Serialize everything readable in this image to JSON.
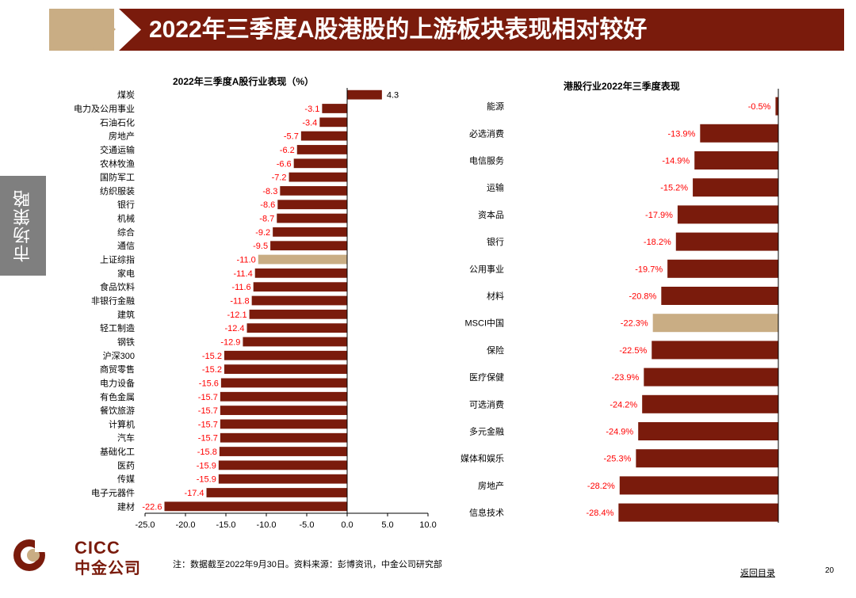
{
  "header": {
    "title": "2022年三季度A股港股的上游板块表现相对较好"
  },
  "side_tab": {
    "label": "市场策略"
  },
  "colors": {
    "brand": "#7a1b0c",
    "bar": "#7a1b0c",
    "highlight": "#c9ad84",
    "label_neg": "#ff0000",
    "tab": "#7f7f7f"
  },
  "chart_data": [
    {
      "type": "bar",
      "orientation": "horizontal",
      "title": "2022年三季度A股行业表现（%）",
      "categories": [
        "煤炭",
        "电力及公用事业",
        "石油石化",
        "房地产",
        "交通运输",
        "农林牧渔",
        "国防军工",
        "纺织服装",
        "银行",
        "机械",
        "综合",
        "通信",
        "上证综指",
        "家电",
        "食品饮料",
        "非银行金融",
        "建筑",
        "轻工制造",
        "钢铁",
        "沪深300",
        "商贸零售",
        "电力设备",
        "有色金属",
        "餐饮旅游",
        "计算机",
        "汽车",
        "基础化工",
        "医药",
        "传媒",
        "电子元器件",
        "建材"
      ],
      "values": [
        4.3,
        -3.1,
        -3.4,
        -5.7,
        -6.2,
        -6.6,
        -7.2,
        -8.3,
        -8.6,
        -8.7,
        -9.2,
        -9.5,
        -11.0,
        -11.4,
        -11.6,
        -11.8,
        -12.1,
        -12.4,
        -12.9,
        -15.2,
        -15.2,
        -15.6,
        -15.7,
        -15.7,
        -15.7,
        -15.7,
        -15.8,
        -15.9,
        -15.9,
        -17.4,
        -22.6
      ],
      "data_labels": [
        "4.3",
        "-3.1",
        "-3.4",
        "-5.7",
        "-6.2",
        "-6.6",
        "-7.2",
        "-8.3",
        "-8.6",
        "-8.7",
        "-9.2",
        "-9.5",
        "-11.0",
        "-11.4",
        "-11.6",
        "-11.8",
        "-12.1",
        "-12.4",
        "-12.9",
        "-15.2",
        "-15.2",
        "-15.6",
        "-15.7",
        "-15.7",
        "-15.7",
        "-15.7",
        "-15.8",
        "-15.9",
        "-15.9",
        "-17.4",
        "-22.6"
      ],
      "highlight": [
        "上证综指"
      ],
      "xlim": [
        -25,
        10
      ],
      "xticks": [
        -25,
        -20,
        -15,
        -10,
        -5,
        0,
        5,
        10
      ],
      "xtick_labels": [
        "-25.0",
        "-20.0",
        "-15.0",
        "-10.0",
        "-5.0",
        "0.0",
        "5.0",
        "10.0"
      ],
      "grid": false
    },
    {
      "type": "bar",
      "orientation": "horizontal",
      "title": "港股行业2022年三季度表现",
      "categories": [
        "能源",
        "必选消费",
        "电信服务",
        "运输",
        "资本品",
        "银行",
        "公用事业",
        "材料",
        "MSCI中国",
        "保险",
        "医疗保健",
        "可选消费",
        "多元金融",
        "媒体和娱乐",
        "房地产",
        "信息技术"
      ],
      "values": [
        -0.5,
        -13.9,
        -14.9,
        -15.2,
        -17.9,
        -18.2,
        -19.7,
        -20.8,
        -22.3,
        -22.5,
        -23.9,
        -24.2,
        -24.9,
        -25.3,
        -28.2,
        -28.4
      ],
      "data_labels": [
        "-0.5%",
        "-13.9%",
        "-14.9%",
        "-15.2%",
        "-17.9%",
        "-18.2%",
        "-19.7%",
        "-20.8%",
        "-22.3%",
        "-22.5%",
        "-23.9%",
        "-24.2%",
        "-24.9%",
        "-25.3%",
        "-28.2%",
        "-28.4%"
      ],
      "highlight": [
        "MSCI中国"
      ],
      "xlim": [
        -30,
        0
      ],
      "grid": false
    }
  ],
  "footer": {
    "logo_en": "CICC",
    "logo_cn": "中金公司",
    "note": "注：数据截至2022年9月30日。资料来源：彭博资讯，中金公司研究部",
    "back_link": "返回目录",
    "page_number": "20"
  }
}
